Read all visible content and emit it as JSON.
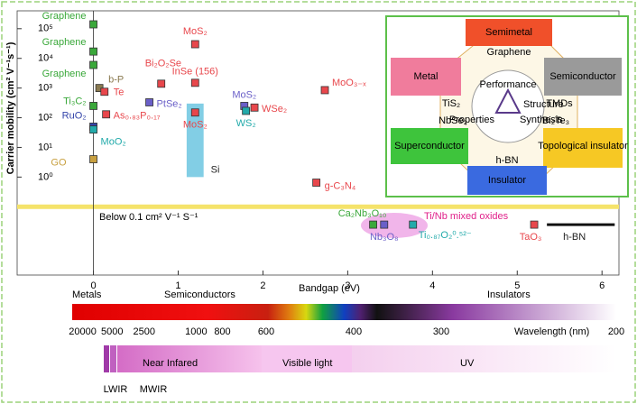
{
  "chart_data": {
    "type": "scatter",
    "y_label": "Carrier mobility (cm² V⁻¹s⁻¹)",
    "x_label": "Bandgap (eV)",
    "xlim": [
      -0.9,
      6.2
    ],
    "xticks": [
      0,
      1,
      2,
      3,
      4,
      5,
      6
    ],
    "ylim": [
      0.0005,
      400000
    ],
    "log_y": true,
    "yticks": [
      {
        "value": 1,
        "label": "10⁰"
      },
      {
        "value": 10,
        "label": "10¹"
      },
      {
        "value": 100,
        "label": "10²"
      },
      {
        "value": 1000,
        "label": "10³"
      },
      {
        "value": 10000,
        "label": "10⁴"
      },
      {
        "value": 100000,
        "label": "10⁵"
      }
    ],
    "threshold": {
      "value": 0.1,
      "label": "Below 0.1 cm² V⁻¹ S⁻¹",
      "color": "#f5e36a"
    },
    "points": [
      {
        "label": "Graphene",
        "x": 0,
        "y": 140000,
        "color": "#3aa83a"
      },
      {
        "label": "Graphene",
        "x": 0,
        "y": 17000,
        "color": "#3aa83a"
      },
      {
        "label": "Graphene",
        "x": 0,
        "y": 6000,
        "color": "#3aa83a"
      },
      {
        "label": "Ti₃C₂",
        "x": 0,
        "y": 250,
        "color": "#3aa83a"
      },
      {
        "label": "RuO₂",
        "x": 0,
        "y": 50,
        "color": "#3344aa"
      },
      {
        "label": "MoO₂",
        "x": 0,
        "y": 40,
        "color": "#22aaaa"
      },
      {
        "label": "GO",
        "x": 0,
        "y": 4,
        "color": "#c8a040"
      },
      {
        "label": "b-P",
        "x": 0.07,
        "y": 1000,
        "color": "#8a7a50"
      },
      {
        "label": "Te",
        "x": 0.13,
        "y": 750,
        "color": "#e8474c"
      },
      {
        "label": "As₀.₈₃P₀.₁₇",
        "x": 0.15,
        "y": 130,
        "color": "#e8474c"
      },
      {
        "label": "PtSe₂",
        "x": 0.66,
        "y": 330,
        "color": "#6a5fc8"
      },
      {
        "label": "Bi₂O₂Se",
        "x": 0.8,
        "y": 1400,
        "color": "#e8474c"
      },
      {
        "label": "MoS₂",
        "x": 1.2,
        "y": 30000,
        "color": "#e8474c"
      },
      {
        "label": "InSe (156)",
        "x": 1.2,
        "y": 1500,
        "color": "#e8474c"
      },
      {
        "label": "MoS₂",
        "x": 1.2,
        "y": 150,
        "color": "#e8474c"
      },
      {
        "label": "MoS₂",
        "x": 1.78,
        "y": 250,
        "color": "#6a5fc8"
      },
      {
        "label": "WSe₂",
        "x": 1.9,
        "y": 220,
        "color": "#e8474c"
      },
      {
        "label": "WS₂",
        "x": 1.8,
        "y": 170,
        "color": "#22aaaa"
      },
      {
        "label": "MoO₃₋ₓ",
        "x": 2.73,
        "y": 850,
        "color": "#e8474c"
      },
      {
        "label": "g-C₃N₄",
        "x": 2.63,
        "y": 0.65,
        "color": "#e8474c"
      },
      {
        "label": "Ca₂Nb₃O₁₀",
        "x": 3.3,
        "y": 0.025,
        "color": "#3aa83a"
      },
      {
        "label": "Nb₃O₈",
        "x": 3.43,
        "y": 0.025,
        "color": "#6a5fc8"
      },
      {
        "label": "Ti₀.₈₇O₂⁰.⁵²⁻",
        "x": 3.77,
        "y": 0.025,
        "color": "#22aaaa"
      },
      {
        "label": "TaO₃",
        "x": 5.2,
        "y": 0.025,
        "color": "#e8474c"
      }
    ],
    "ranges": [
      {
        "label": "Si",
        "x": [
          1.1,
          1.3
        ],
        "y": [
          1,
          300
        ],
        "color": "#6cc6e0"
      },
      {
        "label": "h-BN",
        "x": [
          5.35,
          6.15
        ],
        "y": [
          0.025,
          0.025
        ],
        "color": "#111111"
      }
    ],
    "annotation": "Ti/Nb mixed oxides",
    "classes": [
      "Metals",
      "Semiconductors",
      "Insulators"
    ],
    "wavelength_axis": {
      "label": "Wavelength (nm)",
      "ticks": [
        20000,
        5000,
        2500,
        1000,
        800,
        600,
        400,
        300,
        200
      ]
    },
    "regions": [
      "LWIR",
      "MWIR",
      "Near Infared",
      "Visible light",
      "UV"
    ]
  },
  "inset": {
    "classes": [
      "Semimetal",
      "Metal",
      "Semiconductor",
      "Superconductor",
      "Topological insulator",
      "Insulator"
    ],
    "materials": [
      "Graphene",
      "TMDs",
      "TiS₂",
      "NbSe₂",
      "Bi₂Te₃",
      "h-BN"
    ],
    "center": [
      "Performance",
      "Structure",
      "Properties",
      "Synthesis"
    ]
  }
}
